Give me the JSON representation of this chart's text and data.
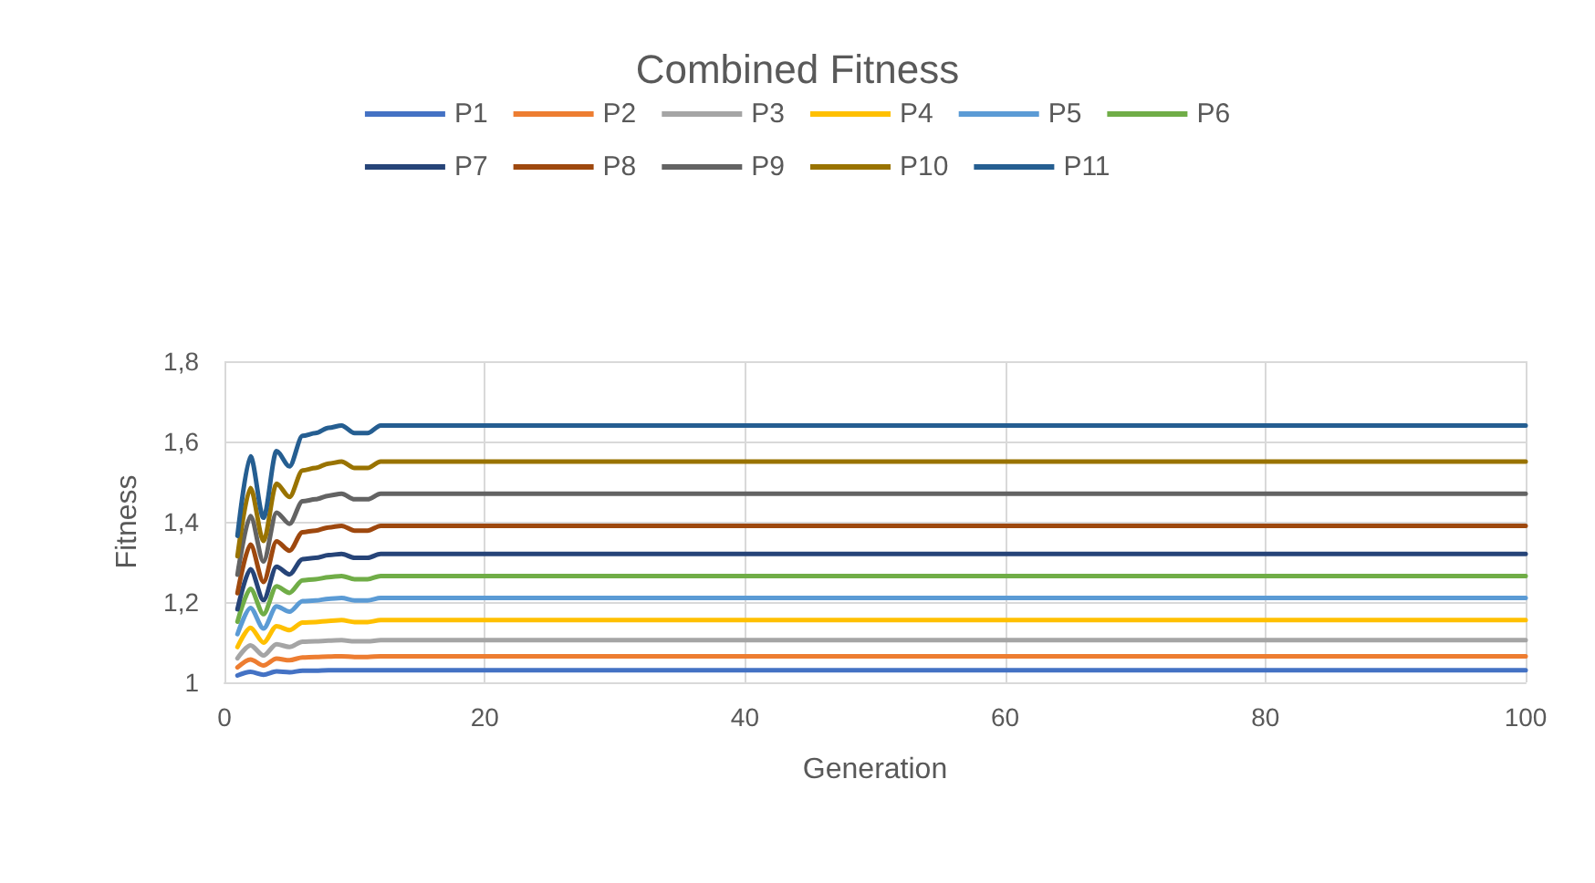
{
  "chart_data": {
    "type": "line",
    "title": "Combined Fitness",
    "xlabel": "Generation",
    "ylabel": "Fitness",
    "x": [
      1,
      2,
      3,
      4,
      5,
      6,
      7,
      8,
      9,
      10,
      11,
      12,
      100
    ],
    "xlim": [
      0,
      100
    ],
    "xticks": [
      0,
      20,
      40,
      60,
      80,
      100
    ],
    "ylim": [
      1,
      1.8
    ],
    "yticks": [
      {
        "value": 1,
        "label": "1"
      },
      {
        "value": 1.2,
        "label": "1,2"
      },
      {
        "value": 1.4,
        "label": "1,4"
      },
      {
        "value": 1.6,
        "label": "1,6"
      },
      {
        "value": 1.8,
        "label": "1,8"
      }
    ],
    "grid": true,
    "legend": "top",
    "marker": "none",
    "line_style": "solid",
    "series": [
      {
        "name": "P1",
        "color": "#4472c4",
        "values": [
          1.017,
          1.026,
          1.019,
          1.027,
          1.025,
          1.029,
          1.029,
          1.03,
          1.03,
          1.03,
          1.03,
          1.03,
          1.03
        ]
      },
      {
        "name": "P2",
        "color": "#ed7d31",
        "values": [
          1.037,
          1.057,
          1.042,
          1.059,
          1.055,
          1.062,
          1.063,
          1.064,
          1.065,
          1.063,
          1.063,
          1.065,
          1.065
        ]
      },
      {
        "name": "P3",
        "color": "#a5a5a5",
        "values": [
          1.06,
          1.092,
          1.067,
          1.095,
          1.088,
          1.101,
          1.102,
          1.104,
          1.105,
          1.102,
          1.102,
          1.105,
          1.105
        ]
      },
      {
        "name": "P4",
        "color": "#ffc000",
        "values": [
          1.088,
          1.136,
          1.099,
          1.14,
          1.13,
          1.149,
          1.15,
          1.153,
          1.155,
          1.15,
          1.15,
          1.155,
          1.155
        ]
      },
      {
        "name": "P5",
        "color": "#5b9bd5",
        "values": [
          1.12,
          1.185,
          1.134,
          1.189,
          1.176,
          1.202,
          1.204,
          1.208,
          1.21,
          1.204,
          1.204,
          1.21,
          1.21
        ]
      },
      {
        "name": "P6",
        "color": "#70ad47",
        "values": [
          1.151,
          1.233,
          1.17,
          1.239,
          1.223,
          1.254,
          1.257,
          1.262,
          1.265,
          1.257,
          1.257,
          1.265,
          1.265
        ]
      },
      {
        "name": "P7",
        "color": "#264478",
        "values": [
          1.182,
          1.282,
          1.205,
          1.288,
          1.269,
          1.307,
          1.31,
          1.317,
          1.32,
          1.31,
          1.31,
          1.32,
          1.32
        ]
      },
      {
        "name": "P8",
        "color": "#9e480e",
        "values": [
          1.222,
          1.343,
          1.25,
          1.351,
          1.328,
          1.374,
          1.378,
          1.386,
          1.39,
          1.378,
          1.378,
          1.39,
          1.39
        ]
      },
      {
        "name": "P9",
        "color": "#636363",
        "values": [
          1.268,
          1.414,
          1.301,
          1.423,
          1.395,
          1.451,
          1.456,
          1.465,
          1.47,
          1.456,
          1.456,
          1.47,
          1.47
        ]
      },
      {
        "name": "P10",
        "color": "#997300",
        "values": [
          1.314,
          1.484,
          1.352,
          1.495,
          1.462,
          1.528,
          1.534,
          1.545,
          1.55,
          1.534,
          1.534,
          1.55,
          1.55
        ]
      },
      {
        "name": "P11",
        "color": "#255e91",
        "values": [
          1.365,
          1.563,
          1.41,
          1.576,
          1.538,
          1.614,
          1.621,
          1.634,
          1.64,
          1.621,
          1.621,
          1.64,
          1.64
        ]
      }
    ]
  }
}
